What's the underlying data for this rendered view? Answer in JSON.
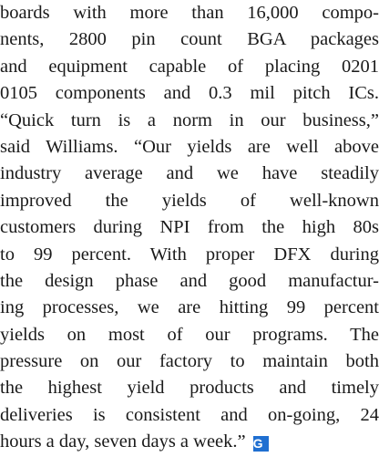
{
  "paragraph": {
    "lines": [
      "boards with more than 16,000 compo-",
      "nents, 2800 pin count BGA packages",
      "and equipment capable of placing 0201",
      "0105 components and 0.3 mil pitch ICs.",
      "“Quick turn is a norm in our business,”",
      "said Williams. “Our yields are well above",
      "industry average and we have steadily",
      "improved the yields of well-known",
      "customers during NPI from the high 80s",
      "to 99 percent. With proper DFX during",
      "the design phase and good manufactur-",
      "ing processes, we are hitting 99 percent",
      "yields on most of our programs. The",
      "pressure on our factory to maintain both",
      "the highest yield products and timely",
      "deliveries is consistent and on-going, 24",
      "hours a day, seven days a week.”"
    ],
    "end_mark": "G"
  }
}
